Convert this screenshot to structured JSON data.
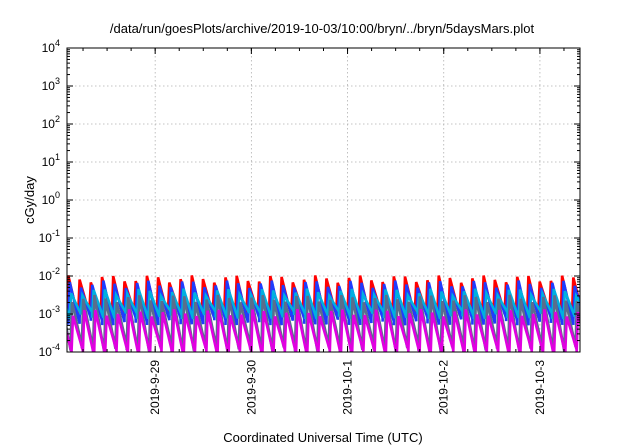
{
  "chart_data": {
    "type": "line",
    "title": "/data/run/goesPlots/archive/2019-10-03/10:00/bryn/../bryn/5daysMars.plot",
    "xlabel": "Coordinated Universal Time (UTC)",
    "ylabel": "cGy/day",
    "yscale": "log",
    "ylim": [
      0.0001,
      10000
    ],
    "yticks": [
      {
        "base": "10",
        "exp": "-4",
        "value": 0.0001
      },
      {
        "base": "10",
        "exp": "-3",
        "value": 0.001
      },
      {
        "base": "10",
        "exp": "-2",
        "value": 0.01
      },
      {
        "base": "10",
        "exp": "-1",
        "value": 0.1
      },
      {
        "base": "10",
        "exp": "0",
        "value": 1
      },
      {
        "base": "10",
        "exp": "1",
        "value": 10
      },
      {
        "base": "10",
        "exp": "2",
        "value": 100
      },
      {
        "base": "10",
        "exp": "3",
        "value": 1000
      },
      {
        "base": "10",
        "exp": "4",
        "value": 10000
      }
    ],
    "xlim": [
      "2019-09-28 02:00",
      "2019-10-03 10:00"
    ],
    "xticks": [
      {
        "label": "2019-9-29",
        "value": "2019-09-29 00:00"
      },
      {
        "label": "2019-9-30",
        "value": "2019-09-30 00:00"
      },
      {
        "label": "2019-10-1",
        "value": "2019-10-01 00:00"
      },
      {
        "label": "2019-10-2",
        "value": "2019-10-02 00:00"
      },
      {
        "label": "2019-10-3",
        "value": "2019-10-03 00:00"
      }
    ],
    "grid": true,
    "pattern": {
      "period_hours": 2.8,
      "sawtooth": "sharp rise then linear decay each cycle"
    },
    "series": [
      {
        "color": "#ff0000",
        "peak": 0.0085,
        "trough": 0.00095,
        "phase_hours": 0.0
      },
      {
        "color": "#1e3cff",
        "peak": 0.0062,
        "trough": 0.00062,
        "phase_hours": 0.35
      },
      {
        "color": "#00b0e0",
        "peak": 0.0038,
        "trough": 0.0009,
        "phase_hours": 0.7
      },
      {
        "color": "#5a6e8c",
        "peak": 0.0026,
        "trough": 0.00012,
        "phase_hours": 0.9
      },
      {
        "color": "#e000e0",
        "peak": 0.0011,
        "trough": 9e-05,
        "phase_hours": 1.15
      }
    ]
  }
}
